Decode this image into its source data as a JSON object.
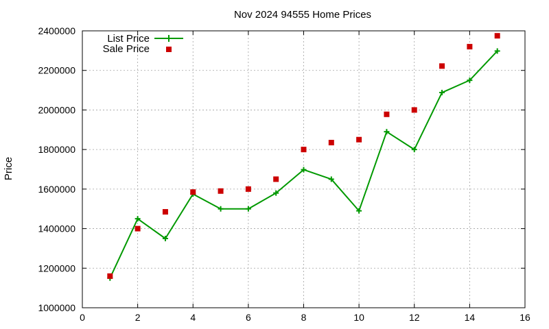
{
  "chart_data": {
    "type": "line",
    "title": "Nov 2024 94555 Home Prices",
    "xlabel": "",
    "ylabel": "Price",
    "xlim": [
      0,
      16
    ],
    "ylim": [
      1000000,
      2400000
    ],
    "xticks": [
      0,
      2,
      4,
      6,
      8,
      10,
      12,
      14,
      16
    ],
    "yticks": [
      1000000,
      1200000,
      1400000,
      1600000,
      1800000,
      2000000,
      2200000,
      2400000
    ],
    "grid": true,
    "legend_position": "top-left",
    "series": [
      {
        "name": "List Price",
        "style": "line-with-plus-markers",
        "color": "#009900",
        "x": [
          1,
          2,
          3,
          4,
          5,
          6,
          7,
          8,
          9,
          10,
          11,
          12,
          13,
          14,
          15
        ],
        "y": [
          1150000,
          1450000,
          1350000,
          1575000,
          1500000,
          1500000,
          1580000,
          1698000,
          1650000,
          1490000,
          1890000,
          1800000,
          2088000,
          2150000,
          2298000
        ]
      },
      {
        "name": "Sale Price",
        "style": "square-markers",
        "color": "#cc0000",
        "x": [
          1,
          2,
          3,
          4,
          5,
          6,
          7,
          8,
          9,
          10,
          11,
          12,
          13,
          14,
          15
        ],
        "y": [
          1160000,
          1400000,
          1485000,
          1585000,
          1590000,
          1600000,
          1650000,
          1800000,
          1835000,
          1850000,
          1978000,
          2000000,
          2222000,
          2320000,
          2375000
        ]
      }
    ]
  }
}
